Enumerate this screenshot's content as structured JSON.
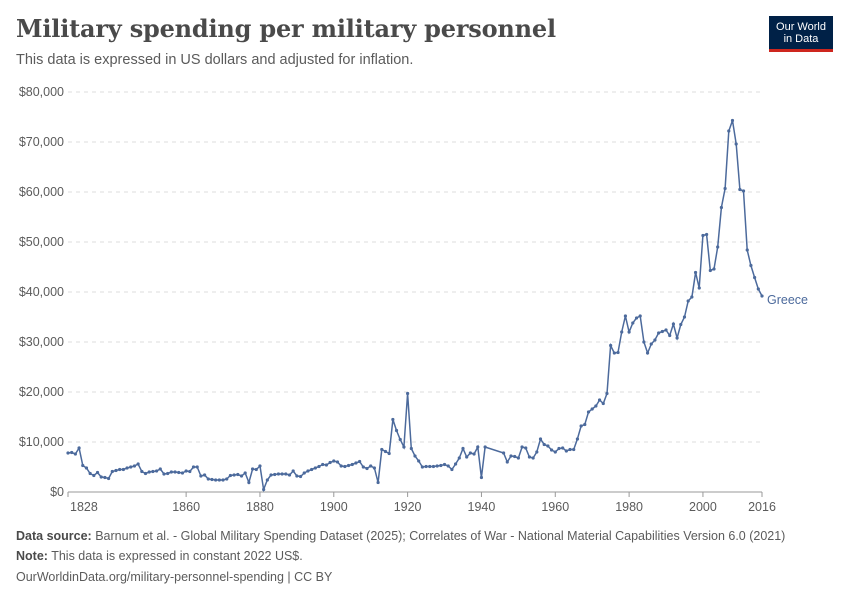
{
  "header": {
    "title": "Military spending per military personnel",
    "subtitle": "This data is expressed in US dollars and adjusted for inflation.",
    "logo_line1": "Our World",
    "logo_line2": "in Data"
  },
  "footer": {
    "source_label": "Data source:",
    "source_text": "Barnum et al. - Global Military Spending Dataset (2025); Correlates of War - National Material Capabilities Version 6.0 (2021)",
    "note_label": "Note:",
    "note_text": "This data is expressed in constant 2022 US$.",
    "url": "OurWorldinData.org/military-personnel-spending | CC BY"
  },
  "colors": {
    "series": "#4c6a9c",
    "grid": "#dddddd",
    "axis": "#999999",
    "logo_bg": "#002147",
    "logo_accent": "#ce261e"
  },
  "chart_data": {
    "type": "line",
    "title": "Military spending per military personnel",
    "subtitle": "This data is expressed in US dollars and adjusted for inflation.",
    "xlabel": "",
    "ylabel": "",
    "xlim": [
      1828,
      2016
    ],
    "ylim": [
      0,
      80000
    ],
    "x_ticks": [
      1828,
      1860,
      1880,
      1900,
      1920,
      1940,
      1960,
      1980,
      2000,
      2016
    ],
    "y_ticks": [
      0,
      10000,
      20000,
      30000,
      40000,
      50000,
      60000,
      70000,
      80000
    ],
    "y_tick_labels": [
      "$0",
      "$10,000",
      "$20,000",
      "$30,000",
      "$40,000",
      "$50,000",
      "$60,000",
      "$70,000",
      "$80,000"
    ],
    "grid": "horizontal dashed",
    "series": [
      {
        "name": "Greece",
        "x": [
          1828,
          1829,
          1830,
          1831,
          1832,
          1833,
          1834,
          1835,
          1836,
          1837,
          1838,
          1839,
          1840,
          1841,
          1842,
          1843,
          1844,
          1845,
          1846,
          1847,
          1848,
          1849,
          1850,
          1851,
          1852,
          1853,
          1854,
          1855,
          1856,
          1857,
          1858,
          1859,
          1860,
          1861,
          1862,
          1863,
          1864,
          1865,
          1866,
          1867,
          1868,
          1869,
          1870,
          1871,
          1872,
          1873,
          1874,
          1875,
          1876,
          1877,
          1878,
          1879,
          1880,
          1881,
          1882,
          1883,
          1884,
          1885,
          1886,
          1887,
          1888,
          1889,
          1890,
          1891,
          1892,
          1893,
          1894,
          1895,
          1896,
          1897,
          1898,
          1899,
          1900,
          1901,
          1902,
          1903,
          1904,
          1905,
          1906,
          1907,
          1908,
          1909,
          1910,
          1911,
          1912,
          1913,
          1914,
          1915,
          1916,
          1917,
          1918,
          1919,
          1920,
          1921,
          1922,
          1923,
          1924,
          1925,
          1926,
          1927,
          1928,
          1929,
          1930,
          1931,
          1932,
          1933,
          1934,
          1935,
          1936,
          1937,
          1938,
          1939,
          1940,
          1941,
          1946,
          1947,
          1948,
          1949,
          1950,
          1951,
          1952,
          1953,
          1954,
          1955,
          1956,
          1957,
          1958,
          1959,
          1960,
          1961,
          1962,
          1963,
          1964,
          1965,
          1966,
          1967,
          1968,
          1969,
          1970,
          1971,
          1972,
          1973,
          1974,
          1975,
          1976,
          1977,
          1978,
          1979,
          1980,
          1981,
          1982,
          1983,
          1984,
          1985,
          1986,
          1987,
          1988,
          1989,
          1990,
          1991,
          1992,
          1993,
          1994,
          1995,
          1996,
          1997,
          1998,
          1999,
          2000,
          2001,
          2002,
          2003,
          2004,
          2005,
          2006,
          2007,
          2008,
          2009,
          2010,
          2011,
          2012,
          2013,
          2014,
          2015,
          2016
        ],
        "y": [
          7800,
          7900,
          7600,
          8800,
          5300,
          4800,
          3700,
          3300,
          3900,
          3000,
          2900,
          2700,
          4100,
          4300,
          4500,
          4500,
          4800,
          5000,
          5200,
          5600,
          4100,
          3700,
          4000,
          4100,
          4200,
          4600,
          3600,
          3700,
          4000,
          4000,
          3900,
          3800,
          4200,
          4100,
          5000,
          5000,
          3200,
          3400,
          2600,
          2500,
          2400,
          2400,
          2400,
          2600,
          3300,
          3400,
          3500,
          3200,
          3800,
          1900,
          4600,
          4500,
          5200,
          500,
          2400,
          3400,
          3500,
          3600,
          3600,
          3600,
          3400,
          4200,
          3200,
          3100,
          3800,
          4200,
          4500,
          4800,
          5100,
          5500,
          5400,
          5900,
          6200,
          6000,
          5200,
          5100,
          5300,
          5500,
          5800,
          6100,
          5000,
          4700,
          5200,
          4800,
          1900,
          8500,
          8100,
          7700,
          14500,
          12300,
          10500,
          9000,
          19700,
          8700,
          7200,
          6200,
          5000,
          5100,
          5100,
          5100,
          5200,
          5300,
          5500,
          5200,
          4500,
          5600,
          6800,
          8700,
          7000,
          7800,
          7600,
          9000,
          2900,
          9000,
          7800,
          6000,
          7200,
          7100,
          6800,
          9000,
          8800,
          7000,
          6800,
          8000,
          10600,
          9500,
          9200,
          8400,
          8000,
          8700,
          8800,
          8200,
          8500,
          8500,
          10600,
          13200,
          13500,
          16000,
          16600,
          17200,
          18400,
          17700,
          19700,
          29300,
          27800,
          27900,
          32000,
          35200,
          32000,
          33800,
          34800,
          35200,
          30000,
          27800,
          29600,
          30400,
          31800,
          32100,
          32400,
          31300,
          33600,
          30800,
          33500,
          35000,
          38200,
          39000,
          43900,
          40800,
          51300,
          51500,
          44300,
          44600,
          49000,
          56900,
          60700,
          72200,
          74300,
          69600,
          60500,
          60200,
          48400,
          45300,
          42900,
          40600,
          39200
        ]
      }
    ]
  }
}
